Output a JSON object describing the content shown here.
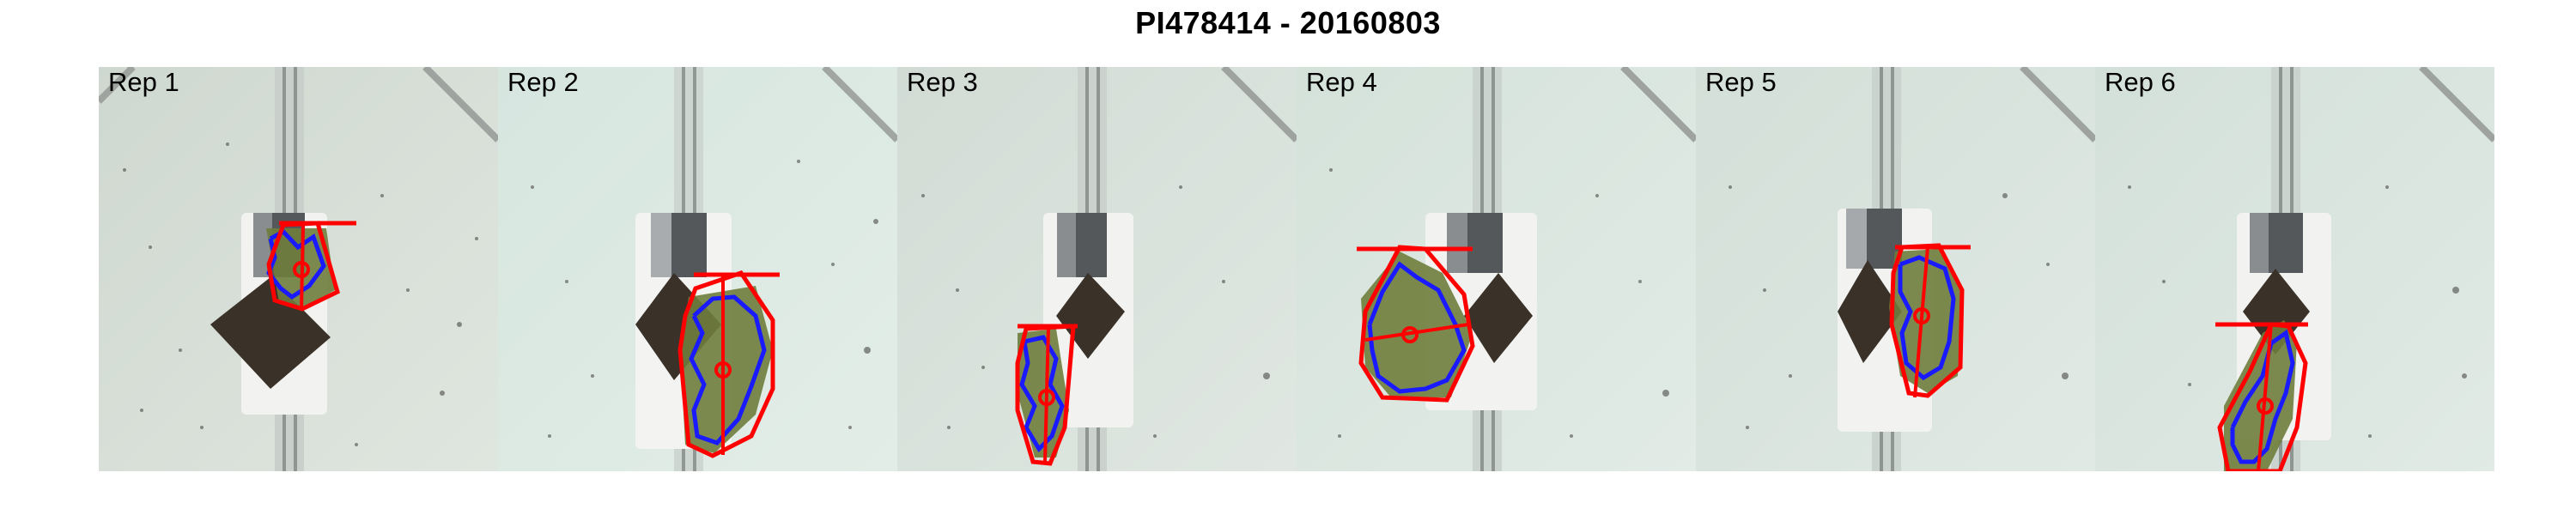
{
  "title": "PI478414 - 20160803",
  "panels": [
    {
      "label": "Rep 1"
    },
    {
      "label": "Rep 2"
    },
    {
      "label": "Rep 3"
    },
    {
      "label": "Rep 4"
    },
    {
      "label": "Rep 5"
    },
    {
      "label": "Rep 6"
    }
  ],
  "colors": {
    "background": "#d9e6df",
    "hull": "#ff0000",
    "contour": "#1a1aff",
    "plant": "#6f7d3c",
    "soil": "#3a3128"
  }
}
